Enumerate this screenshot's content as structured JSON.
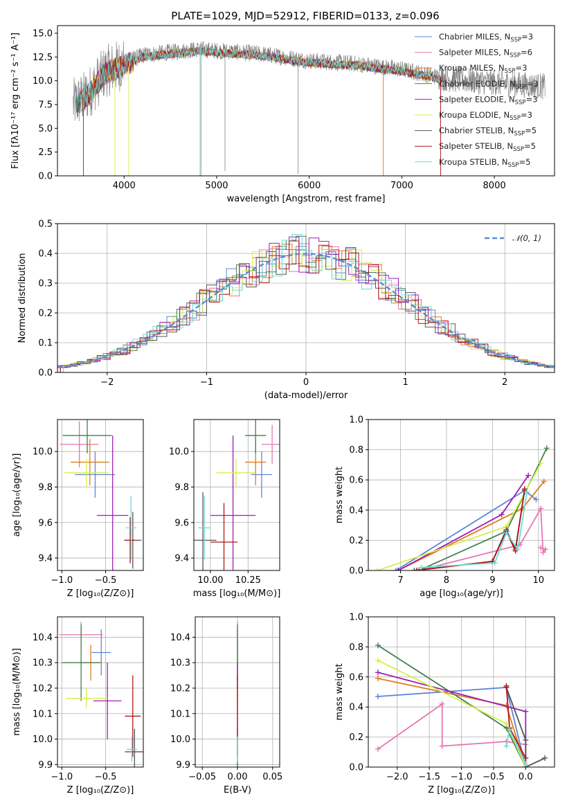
{
  "title": "PLATE=1029, MJD=52912, FIBERID=0133, z=0.096",
  "colors": {
    "Chabrier MILES": "#5b85d8",
    "Salpeter MILES": "#e377b0",
    "Kroupa MILES": "#e07b1a",
    "Chabrier ELODIE": "#3f7f4f",
    "Salpeter ELODIE": "#9b1fb5",
    "Kroupa ELODIE": "#d6ee4a",
    "Chabrier STELIB": "#555555",
    "Salpeter STELIB": "#b01414",
    "Kroupa STELIB": "#72d8d8"
  },
  "chart_data": [
    {
      "id": "spectrum",
      "type": "line",
      "title": "PLATE=1029, MJD=52912, FIBERID=0133, z=0.096",
      "xlabel": "wavelength [Angstrom, rest frame]",
      "ylabel": "Flux [fλ10⁻¹⁷ erg cm⁻² s⁻¹ A⁻¹]",
      "xlim": [
        3280,
        8650
      ],
      "ylim": [
        0,
        15.8
      ],
      "xticks": [
        4000,
        5000,
        6000,
        7000,
        8000
      ],
      "yticks": [
        0.0,
        2.5,
        5.0,
        7.5,
        10.0,
        12.5,
        15.0
      ],
      "ytick_labels": [
        "0.0",
        "2.5",
        "5.0",
        "7.5",
        "10.0",
        "12.5",
        "15.0"
      ],
      "grid": false,
      "legend_position": "top-right",
      "data_color": "#808080",
      "data_profile": {
        "x": [
          3450,
          3600,
          3800,
          4000,
          4200,
          4500,
          4800,
          5100,
          5500,
          6000,
          6500,
          7000,
          7500,
          8000,
          8550
        ],
        "y": [
          7.5,
          8.5,
          11.0,
          11.8,
          12.7,
          13.0,
          13.3,
          13.1,
          12.8,
          12.1,
          11.8,
          11.2,
          10.2,
          9.8,
          9.4
        ]
      },
      "legend": [
        {
          "label": "Chabrier MILES, N",
          "sub": "SSP",
          "suffix": "=3",
          "key": "Chabrier MILES"
        },
        {
          "label": "Salpeter MILES, N",
          "sub": "SSP",
          "suffix": "=6",
          "key": "Salpeter MILES"
        },
        {
          "label": "Kroupa MILES, N",
          "sub": "SSP",
          "suffix": "=3",
          "key": "Kroupa MILES"
        },
        {
          "label": "Chabrier ELODIE, N",
          "sub": "SSP",
          "suffix": "=3",
          "key": "Chabrier ELODIE"
        },
        {
          "label": "Salpeter ELODIE, N",
          "sub": "SSP",
          "suffix": "=3",
          "key": "Salpeter ELODIE"
        },
        {
          "label": "Kroupa ELODIE, N",
          "sub": "SSP",
          "suffix": "=3",
          "key": "Kroupa ELODIE"
        },
        {
          "label": "Chabrier STELIB, N",
          "sub": "SSP",
          "suffix": "=5",
          "key": "Chabrier STELIB"
        },
        {
          "label": "Salpeter STELIB, N",
          "sub": "SSP",
          "suffix": "=5",
          "key": "Salpeter STELIB"
        },
        {
          "label": "Kroupa STELIB, N",
          "sub": "SSP",
          "suffix": "=5",
          "key": "Kroupa STELIB"
        }
      ]
    },
    {
      "id": "residuals",
      "type": "histogram",
      "xlabel": "(data-model)/error",
      "ylabel": "Normed distribution",
      "xlim": [
        -2.5,
        2.5
      ],
      "ylim": [
        0,
        0.5
      ],
      "xticks": [
        -2,
        -1,
        0,
        1,
        2
      ],
      "xtick_labels": [
        "−2",
        "−1",
        "0",
        "1",
        "2"
      ],
      "yticks": [
        0.0,
        0.1,
        0.2,
        0.3,
        0.4,
        0.5
      ],
      "ytick_labels": [
        "0.0",
        "0.1",
        "0.2",
        "0.3",
        "0.4",
        "0.5"
      ],
      "grid": true,
      "bin_width": 0.1,
      "reference_curve": {
        "label": "𝒩(0, 1)",
        "color": "#5b8bd6",
        "style": "dashed",
        "mean": 0,
        "sigma": 1
      },
      "legend_position": "top-right"
    },
    {
      "id": "age-vs-z",
      "type": "scatter",
      "xlabel": "Z [log₁₀(Z/Z⊙)]",
      "ylabel": "age  [log₁₀(age/yr)]",
      "xlim": [
        -1.05,
        -0.07
      ],
      "ylim": [
        9.33,
        10.18
      ],
      "xticks": [
        -1.0,
        -0.5
      ],
      "xtick_labels": [
        "−1.0",
        "−0.5"
      ],
      "yticks": [
        9.4,
        9.6,
        9.8,
        10.0
      ],
      "ytick_labels": [
        "9.4",
        "9.6",
        "9.8",
        "10.0"
      ],
      "grid": true,
      "points": [
        {
          "key": "Chabrier MILES",
          "x": -0.62,
          "y": 9.87,
          "xerr": 0.23,
          "yerr": 0.13
        },
        {
          "key": "Salpeter MILES",
          "x": -0.8,
          "y": 10.04,
          "xerr": 0.22,
          "yerr": 0.13
        },
        {
          "key": "Kroupa MILES",
          "x": -0.68,
          "y": 9.94,
          "xerr": 0.22,
          "yerr": 0.13
        },
        {
          "key": "Chabrier ELODIE",
          "x": -0.71,
          "y": 10.09,
          "xerr": 0.28,
          "yerr": 0.1
        },
        {
          "key": "Salpeter ELODIE",
          "x": -0.42,
          "y": 9.64,
          "xerr": 0.18,
          "yerr": 0.45
        },
        {
          "key": "Kroupa ELODIE",
          "x": -0.72,
          "y": 9.88,
          "xerr": 0.25,
          "yerr": 0.08
        },
        {
          "key": "Chabrier STELIB",
          "x": -0.19,
          "y": 9.5,
          "xerr": 0.1,
          "yerr": 0.16
        },
        {
          "key": "Salpeter STELIB",
          "x": -0.22,
          "y": 9.5,
          "xerr": 0.06,
          "yerr": 0.13
        },
        {
          "key": "Kroupa STELIB",
          "x": -0.21,
          "y": 9.57,
          "xerr": 0.06,
          "yerr": 0.18
        }
      ]
    },
    {
      "id": "age-vs-mass",
      "type": "scatter",
      "xlabel": "mass [log₁₀(M/M⊙)]",
      "ylabel": "",
      "xlim": [
        9.89,
        10.46
      ],
      "ylim": [
        9.33,
        10.18
      ],
      "xticks": [
        10.0,
        10.25
      ],
      "xtick_labels": [
        "10.00",
        "10.25"
      ],
      "yticks": [
        9.4,
        9.6,
        9.8,
        10.0
      ],
      "ytick_labels": [
        "9.4",
        "9.6",
        "9.8",
        "10.0"
      ],
      "grid": true,
      "points": [
        {
          "key": "Chabrier MILES",
          "x": 10.34,
          "y": 9.87,
          "xerr": 0.07,
          "yerr": 0.13
        },
        {
          "key": "Salpeter MILES",
          "x": 10.41,
          "y": 10.04,
          "xerr": 0.07,
          "yerr": 0.11
        },
        {
          "key": "Kroupa MILES",
          "x": 10.3,
          "y": 9.94,
          "xerr": 0.07,
          "yerr": 0.13
        },
        {
          "key": "Chabrier ELODIE",
          "x": 10.3,
          "y": 10.09,
          "xerr": 0.07,
          "yerr": 0.1
        },
        {
          "key": "Salpeter ELODIE",
          "x": 10.15,
          "y": 9.64,
          "xerr": 0.15,
          "yerr": 0.45
        },
        {
          "key": "Kroupa ELODIE",
          "x": 10.17,
          "y": 9.88,
          "xerr": 0.13,
          "yerr": 0.08
        },
        {
          "key": "Chabrier STELIB",
          "x": 9.95,
          "y": 9.5,
          "xerr": 0.09,
          "yerr": 0.27
        },
        {
          "key": "Salpeter STELIB",
          "x": 10.09,
          "y": 9.49,
          "xerr": 0.09,
          "yerr": 0.22
        },
        {
          "key": "Kroupa STELIB",
          "x": 9.96,
          "y": 9.57,
          "xerr": 0.04,
          "yerr": 0.18
        }
      ]
    },
    {
      "id": "weight-vs-age",
      "type": "line",
      "xlabel": "age  [log₁₀(age/yr)]",
      "ylabel": "mass weight",
      "xlim": [
        6.3,
        10.35
      ],
      "ylim": [
        0,
        1
      ],
      "xticks": [
        7,
        8,
        9,
        10
      ],
      "xtick_labels": [
        "7",
        "8",
        "9",
        "10"
      ],
      "yticks": [
        0.0,
        0.2,
        0.4,
        0.6,
        0.8,
        1.0
      ],
      "ytick_labels": [
        "0.0",
        "0.2",
        "0.4",
        "0.6",
        "0.8",
        "1.0"
      ],
      "grid": true,
      "series": [
        {
          "key": "Chabrier MILES",
          "x": [
            6.9,
            9.7,
            9.95
          ],
          "y": [
            0.0,
            0.53,
            0.47
          ]
        },
        {
          "key": "Salpeter MILES",
          "x": [
            7.4,
            9.6,
            10.05,
            10.1,
            10.15,
            10.05
          ],
          "y": [
            0.0,
            0.17,
            0.41,
            0.12,
            0.14,
            0.15
          ]
        },
        {
          "key": "Kroupa MILES",
          "x": [
            6.95,
            9.65,
            10.12
          ],
          "y": [
            0.0,
            0.41,
            0.59
          ]
        },
        {
          "key": "Chabrier ELODIE",
          "x": [
            7.4,
            9.3,
            10.18
          ],
          "y": [
            0.0,
            0.26,
            0.81
          ]
        },
        {
          "key": "Salpeter ELODIE",
          "x": [
            6.95,
            9.2,
            9.78
          ],
          "y": [
            0.0,
            0.37,
            0.63
          ]
        },
        {
          "key": "Kroupa ELODIE",
          "x": [
            6.5,
            9.3,
            10.05
          ],
          "y": [
            0.0,
            0.29,
            0.71
          ]
        },
        {
          "key": "Chabrier STELIB",
          "x": [
            7.3,
            9.0,
            9.3,
            9.5,
            9.7
          ],
          "y": [
            0.0,
            0.06,
            0.27,
            0.14,
            0.53
          ]
        },
        {
          "key": "Salpeter STELIB",
          "x": [
            7.35,
            9.0,
            9.3,
            9.5,
            9.7
          ],
          "y": [
            0.0,
            0.06,
            0.26,
            0.13,
            0.54
          ]
        },
        {
          "key": "Kroupa STELIB",
          "x": [
            7.45,
            9.05,
            9.3,
            9.55,
            9.75
          ],
          "y": [
            0.02,
            0.05,
            0.25,
            0.14,
            0.52
          ]
        }
      ]
    },
    {
      "id": "mass-vs-z",
      "type": "scatter",
      "xlabel": "Z [log₁₀(Z/Z⊙)]",
      "ylabel": "mass [log₁₀(M/M⊙)]",
      "xlim": [
        -1.05,
        -0.07
      ],
      "ylim": [
        9.89,
        10.48
      ],
      "xticks": [
        -1.0,
        -0.5
      ],
      "xtick_labels": [
        "−1.0",
        "−0.5"
      ],
      "yticks": [
        9.9,
        10.0,
        10.1,
        10.2,
        10.3,
        10.4
      ],
      "ytick_labels": [
        "9.9",
        "10.0",
        "10.1",
        "10.2",
        "10.3",
        "10.4"
      ],
      "grid": true,
      "points": [
        {
          "key": "Chabrier MILES",
          "x": -0.55,
          "y": 10.34,
          "xerr": 0.11,
          "yerr": 0.09
        },
        {
          "key": "Salpeter MILES",
          "x": -0.78,
          "y": 10.41,
          "xerr": 0.25,
          "yerr": 0.05
        },
        {
          "key": "Kroupa MILES",
          "x": -0.67,
          "y": 10.3,
          "xerr": 0.13,
          "yerr": 0.07
        },
        {
          "key": "Chabrier ELODIE",
          "x": -0.78,
          "y": 10.3,
          "xerr": 0.22,
          "yerr": 0.15
        },
        {
          "key": "Salpeter ELODIE",
          "x": -0.48,
          "y": 10.15,
          "xerr": 0.16,
          "yerr": 0.15
        },
        {
          "key": "Kroupa ELODIE",
          "x": -0.72,
          "y": 10.16,
          "xerr": 0.24,
          "yerr": 0.04
        },
        {
          "key": "Chabrier STELIB",
          "x": -0.17,
          "y": 9.95,
          "xerr": 0.11,
          "yerr": 0.09
        },
        {
          "key": "Salpeter STELIB",
          "x": -0.19,
          "y": 10.09,
          "xerr": 0.09,
          "yerr": 0.16
        },
        {
          "key": "Kroupa STELIB",
          "x": -0.2,
          "y": 9.96,
          "xerr": 0.06,
          "yerr": 0.05
        }
      ]
    },
    {
      "id": "mass-vs-ebv",
      "type": "scatter",
      "xlabel": "E(B-V)",
      "ylabel": "",
      "xlim": [
        -0.06,
        0.06
      ],
      "ylim": [
        9.89,
        10.48
      ],
      "xticks": [
        -0.05,
        0.0,
        0.05
      ],
      "xtick_labels": [
        "−0.05",
        "0.00",
        "0.05"
      ],
      "yticks": [
        9.9,
        10.0,
        10.1,
        10.2,
        10.3,
        10.4
      ],
      "ytick_labels": [
        "9.9",
        "10.0",
        "10.1",
        "10.2",
        "10.3",
        "10.4"
      ],
      "grid": true,
      "points": [
        {
          "key": "Chabrier MILES",
          "x": 0.0,
          "y": 10.34,
          "xerr": 0.0,
          "yerr": 0.09
        },
        {
          "key": "Salpeter MILES",
          "x": 0.0,
          "y": 10.41,
          "xerr": 0.0,
          "yerr": 0.05
        },
        {
          "key": "Kroupa MILES",
          "x": 0.0,
          "y": 10.3,
          "xerr": 0.0,
          "yerr": 0.07
        },
        {
          "key": "Chabrier ELODIE",
          "x": 0.0,
          "y": 10.3,
          "xerr": 0.0,
          "yerr": 0.15
        },
        {
          "key": "Salpeter ELODIE",
          "x": 0.0,
          "y": 10.15,
          "xerr": 0.0,
          "yerr": 0.15
        },
        {
          "key": "Kroupa ELODIE",
          "x": 0.0,
          "y": 10.16,
          "xerr": 0.0,
          "yerr": 0.04
        },
        {
          "key": "Chabrier STELIB",
          "x": 0.0,
          "y": 9.95,
          "xerr": 0.0,
          "yerr": 0.09
        },
        {
          "key": "Salpeter STELIB",
          "x": 0.0,
          "y": 10.09,
          "xerr": 0.0,
          "yerr": 0.16
        },
        {
          "key": "Kroupa STELIB",
          "x": 0.0,
          "y": 9.96,
          "xerr": 0.0,
          "yerr": 0.05
        }
      ]
    },
    {
      "id": "weight-vs-z",
      "type": "line",
      "xlabel": "Z [log₁₀(Z/Z⊙)]",
      "ylabel": "mass weight",
      "xlim": [
        -2.45,
        0.45
      ],
      "ylim": [
        0,
        1
      ],
      "xticks": [
        -2.0,
        -1.5,
        -1.0,
        -0.5,
        0.0
      ],
      "xtick_labels": [
        "−2.0",
        "−1.5",
        "−1.0",
        "−0.5",
        "0.0"
      ],
      "yticks": [
        0.0,
        0.2,
        0.4,
        0.6,
        0.8,
        1.0
      ],
      "ytick_labels": [
        "0.0",
        "0.2",
        "0.4",
        "0.6",
        "0.8",
        "1.0"
      ],
      "grid": true,
      "series": [
        {
          "key": "Chabrier MILES",
          "x": [
            -2.3,
            -0.3,
            0.0
          ],
          "y": [
            0.47,
            0.53,
            0.0
          ]
        },
        {
          "key": "Salpeter MILES",
          "x": [
            -2.3,
            -1.3,
            -1.3,
            -0.3,
            0.0
          ],
          "y": [
            0.12,
            0.42,
            0.14,
            0.17,
            0.15
          ]
        },
        {
          "key": "Kroupa MILES",
          "x": [
            -2.3,
            -0.3,
            0.0
          ],
          "y": [
            0.59,
            0.41,
            0.0
          ]
        },
        {
          "key": "Chabrier ELODIE",
          "x": [
            -2.3,
            -0.3,
            0.0
          ],
          "y": [
            0.81,
            0.26,
            0.0
          ]
        },
        {
          "key": "Salpeter ELODIE",
          "x": [
            -2.3,
            0.0,
            0.0
          ],
          "y": [
            0.63,
            0.37,
            0.0
          ]
        },
        {
          "key": "Kroupa ELODIE",
          "x": [
            -2.3,
            -0.3,
            0.0
          ],
          "y": [
            0.71,
            0.29,
            0.0
          ]
        },
        {
          "key": "Chabrier STELIB",
          "x": [
            -0.3,
            0.0,
            0.0,
            0.3
          ],
          "y": [
            0.53,
            0.18,
            0.0,
            0.06
          ]
        },
        {
          "key": "Salpeter STELIB",
          "x": [
            -0.3,
            -0.25,
            0.0
          ],
          "y": [
            0.54,
            0.26,
            0.06
          ]
        },
        {
          "key": "Kroupa STELIB",
          "x": [
            -0.3,
            -0.25,
            0.0
          ],
          "y": [
            0.14,
            0.25,
            0.02
          ]
        }
      ]
    }
  ]
}
